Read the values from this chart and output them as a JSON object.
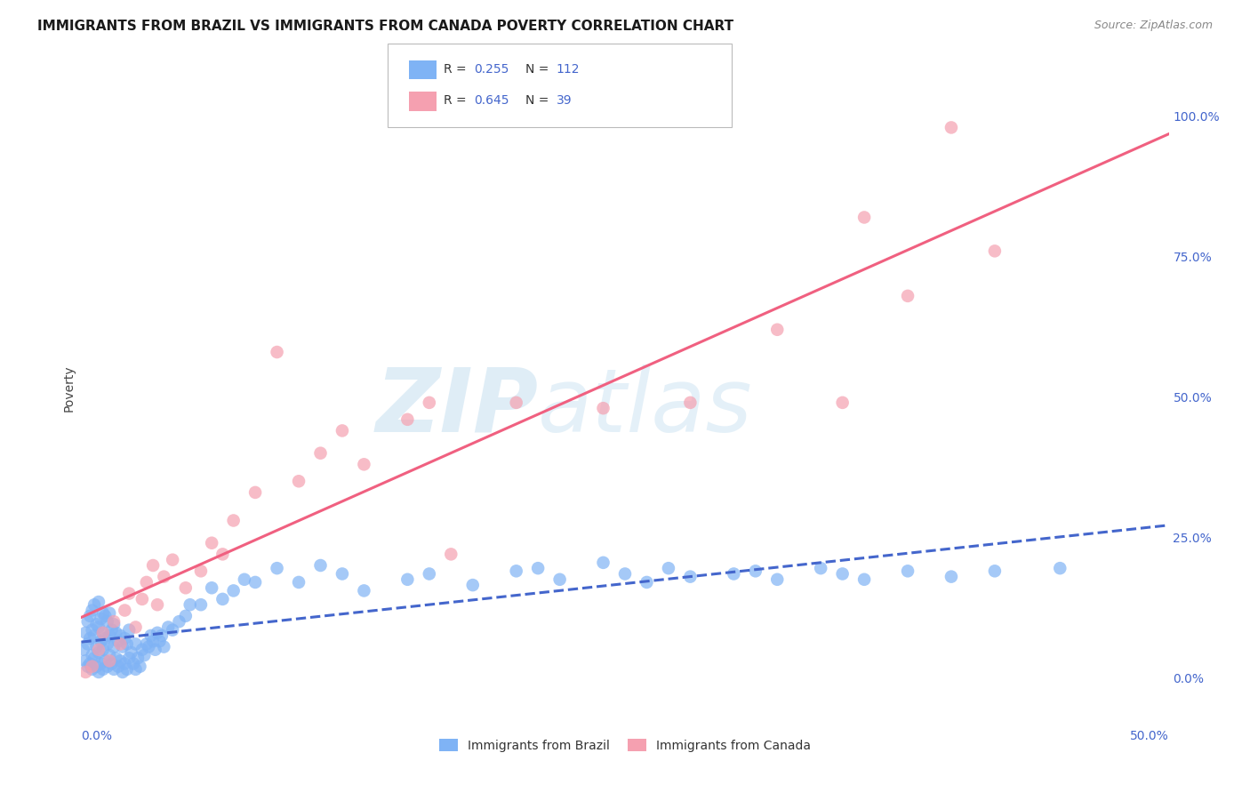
{
  "title": "IMMIGRANTS FROM BRAZIL VS IMMIGRANTS FROM CANADA POVERTY CORRELATION CHART",
  "source": "Source: ZipAtlas.com",
  "ylabel": "Poverty",
  "ylabel_right_ticks": [
    "100.0%",
    "75.0%",
    "50.0%",
    "25.0%",
    "0.0%"
  ],
  "ylabel_right_vals": [
    1.0,
    0.75,
    0.5,
    0.25,
    0.0
  ],
  "xlim": [
    0.0,
    0.5
  ],
  "ylim": [
    -0.05,
    1.08
  ],
  "brazil_R": 0.255,
  "brazil_N": 112,
  "canada_R": 0.645,
  "canada_N": 39,
  "brazil_color": "#7fb3f5",
  "canada_color": "#f5a0b0",
  "brazil_line_color": "#4466cc",
  "canada_line_color": "#f06080",
  "brazil_scatter_x": [
    0.001,
    0.002,
    0.002,
    0.003,
    0.003,
    0.003,
    0.004,
    0.004,
    0.004,
    0.005,
    0.005,
    0.005,
    0.005,
    0.006,
    0.006,
    0.006,
    0.007,
    0.007,
    0.007,
    0.008,
    0.008,
    0.008,
    0.008,
    0.009,
    0.009,
    0.009,
    0.01,
    0.01,
    0.01,
    0.01,
    0.011,
    0.011,
    0.011,
    0.012,
    0.012,
    0.012,
    0.013,
    0.013,
    0.013,
    0.014,
    0.014,
    0.015,
    0.015,
    0.015,
    0.016,
    0.016,
    0.017,
    0.017,
    0.018,
    0.018,
    0.019,
    0.019,
    0.02,
    0.02,
    0.021,
    0.021,
    0.022,
    0.022,
    0.023,
    0.024,
    0.025,
    0.025,
    0.026,
    0.027,
    0.028,
    0.029,
    0.03,
    0.031,
    0.032,
    0.033,
    0.034,
    0.035,
    0.036,
    0.037,
    0.038,
    0.04,
    0.042,
    0.045,
    0.048,
    0.05,
    0.055,
    0.06,
    0.065,
    0.07,
    0.075,
    0.08,
    0.09,
    0.1,
    0.11,
    0.12,
    0.13,
    0.15,
    0.16,
    0.18,
    0.2,
    0.21,
    0.22,
    0.24,
    0.25,
    0.26,
    0.27,
    0.28,
    0.3,
    0.31,
    0.32,
    0.34,
    0.35,
    0.36,
    0.38,
    0.4,
    0.42,
    0.45
  ],
  "brazil_scatter_y": [
    0.05,
    0.03,
    0.08,
    0.02,
    0.06,
    0.1,
    0.025,
    0.07,
    0.11,
    0.015,
    0.04,
    0.085,
    0.12,
    0.035,
    0.075,
    0.13,
    0.02,
    0.055,
    0.095,
    0.01,
    0.045,
    0.09,
    0.135,
    0.025,
    0.065,
    0.105,
    0.015,
    0.05,
    0.08,
    0.115,
    0.03,
    0.07,
    0.11,
    0.02,
    0.06,
    0.1,
    0.04,
    0.075,
    0.115,
    0.025,
    0.085,
    0.015,
    0.055,
    0.095,
    0.035,
    0.08,
    0.02,
    0.065,
    0.03,
    0.075,
    0.01,
    0.055,
    0.025,
    0.07,
    0.015,
    0.06,
    0.035,
    0.085,
    0.045,
    0.025,
    0.015,
    0.06,
    0.035,
    0.02,
    0.05,
    0.04,
    0.06,
    0.055,
    0.075,
    0.065,
    0.05,
    0.08,
    0.065,
    0.075,
    0.055,
    0.09,
    0.085,
    0.1,
    0.11,
    0.13,
    0.13,
    0.16,
    0.14,
    0.155,
    0.175,
    0.17,
    0.195,
    0.17,
    0.2,
    0.185,
    0.155,
    0.175,
    0.185,
    0.165,
    0.19,
    0.195,
    0.175,
    0.205,
    0.185,
    0.17,
    0.195,
    0.18,
    0.185,
    0.19,
    0.175,
    0.195,
    0.185,
    0.175,
    0.19,
    0.18,
    0.19,
    0.195
  ],
  "canada_scatter_x": [
    0.002,
    0.005,
    0.008,
    0.01,
    0.013,
    0.015,
    0.018,
    0.02,
    0.022,
    0.025,
    0.028,
    0.03,
    0.033,
    0.035,
    0.038,
    0.042,
    0.048,
    0.055,
    0.06,
    0.065,
    0.07,
    0.08,
    0.09,
    0.1,
    0.11,
    0.12,
    0.13,
    0.15,
    0.16,
    0.17,
    0.2,
    0.24,
    0.28,
    0.32,
    0.35,
    0.36,
    0.38,
    0.4,
    0.42
  ],
  "canada_scatter_y": [
    0.01,
    0.02,
    0.05,
    0.08,
    0.03,
    0.1,
    0.06,
    0.12,
    0.15,
    0.09,
    0.14,
    0.17,
    0.2,
    0.13,
    0.18,
    0.21,
    0.16,
    0.19,
    0.24,
    0.22,
    0.28,
    0.33,
    0.58,
    0.35,
    0.4,
    0.44,
    0.38,
    0.46,
    0.49,
    0.22,
    0.49,
    0.48,
    0.49,
    0.62,
    0.49,
    0.82,
    0.68,
    0.98,
    0.76
  ],
  "watermark_zip_color": "#c5dff0",
  "watermark_atlas_color": "#c5dff0",
  "background_color": "#ffffff",
  "grid_color": "#e0e0e0"
}
